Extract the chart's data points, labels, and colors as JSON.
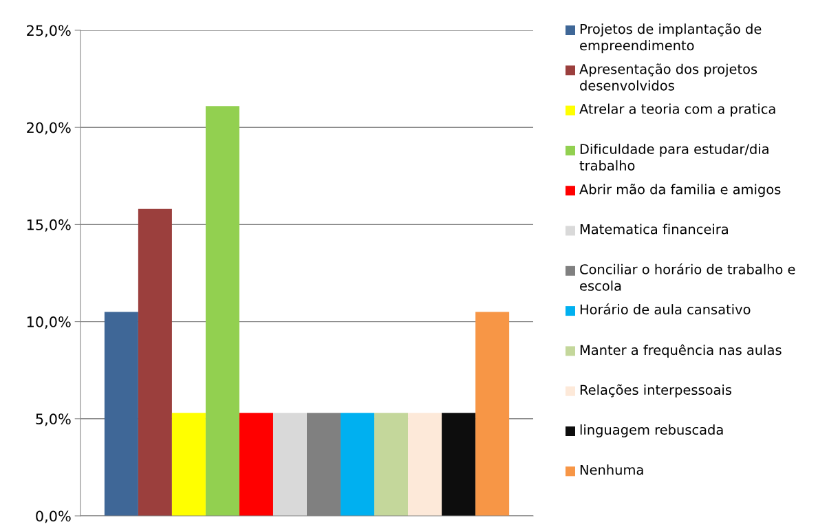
{
  "chart_data": {
    "type": "bar",
    "categories": [
      null
    ],
    "series": [
      {
        "name": "Projetos de implantação de empreendimento",
        "color": "#3f6797",
        "values": [
          10.5
        ]
      },
      {
        "name": "Apresentação dos projetos desenvolvidos",
        "color": "#9b3f3d",
        "values": [
          15.8
        ]
      },
      {
        "name": "Atrelar a teoria com a pratica",
        "color": "#ffff00",
        "values": [
          5.3
        ]
      },
      {
        "name": "Dificuldade para estudar/dia trabalho",
        "color": "#92d050",
        "values": [
          21.1
        ]
      },
      {
        "name": "Abrir mão da familia e amigos",
        "color": "#ff0000",
        "values": [
          5.3
        ]
      },
      {
        "name": "Matematica financeira",
        "color": "#d9d9d9",
        "values": [
          5.3
        ]
      },
      {
        "name": "Conciliar o horário de trabalho e escola",
        "color": "#808080",
        "values": [
          5.3
        ]
      },
      {
        "name": "Horário de aula cansativo",
        "color": "#00b0f0",
        "values": [
          5.3
        ]
      },
      {
        "name": "Manter a frequência nas aulas",
        "color": "#c4d79b",
        "values": [
          5.3
        ]
      },
      {
        "name": "Relações interpessoais",
        "color": "#fde9d9",
        "values": [
          5.3
        ]
      },
      {
        "name": "linguagem rebuscada",
        "color": "#0d0d0d",
        "values": [
          5.3
        ]
      },
      {
        "name": "Nenhuma",
        "color": "#f79646",
        "values": [
          10.5
        ]
      }
    ],
    "ylim": [
      0,
      25
    ],
    "yticks": [
      {
        "value": 0,
        "label": "0,0%"
      },
      {
        "value": 5,
        "label": "5,0%"
      },
      {
        "value": 10,
        "label": "10,0%"
      },
      {
        "value": 15,
        "label": "15,0%"
      },
      {
        "value": 20,
        "label": "20,0%"
      },
      {
        "value": 25,
        "label": "25,0%"
      }
    ],
    "grid": "y",
    "legend": "right"
  }
}
